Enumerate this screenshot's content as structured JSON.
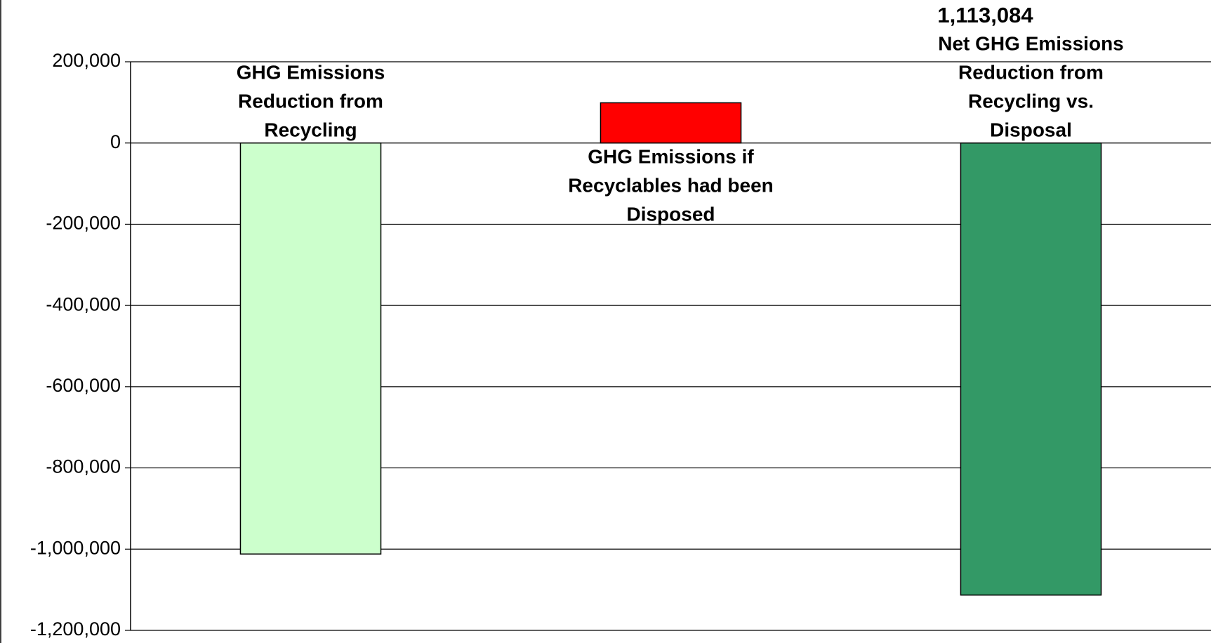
{
  "chart_data": {
    "type": "bar",
    "categories": [
      "GHG Emissions\nReduction from\nRecycling",
      "GHG Emissions if\nRecyclables had been\nDisposed",
      "Net GHG Emissions\nReduction from\nRecycling vs.\nDisposal"
    ],
    "values": [
      -1012000,
      99000,
      -1113084
    ],
    "value_labels": [
      null,
      null,
      "1,113,084"
    ],
    "colors": [
      "#ccffcc",
      "#ff0000",
      "#339966"
    ],
    "ylim": [
      -1200000,
      200000
    ],
    "yticks": [
      {
        "value": -1200000,
        "label": "-1,200,000"
      },
      {
        "value": -1000000,
        "label": "-1,000,000"
      },
      {
        "value": -800000,
        "label": "-800,000"
      },
      {
        "value": -600000,
        "label": "-600,000"
      },
      {
        "value": -400000,
        "label": "-400,000"
      },
      {
        "value": -200000,
        "label": "-200,000"
      },
      0,
      {
        "value": 200000,
        "label": "200,000"
      }
    ],
    "grid": true
  }
}
